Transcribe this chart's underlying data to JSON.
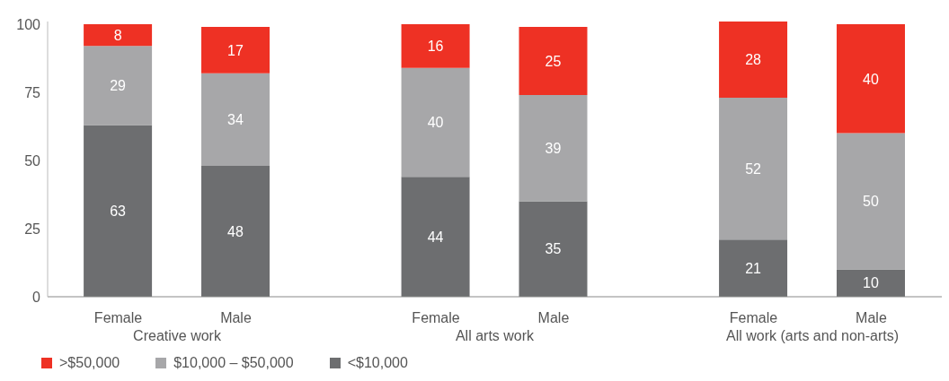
{
  "chart_data": {
    "type": "bar",
    "stacked": true,
    "categories": [
      "Female",
      "Male",
      "Female",
      "Male",
      "Female",
      "Male"
    ],
    "series": [
      {
        "name": "<$10,000",
        "color": "#6d6e70",
        "values": [
          63,
          48,
          44,
          35,
          21,
          10
        ]
      },
      {
        "name": "$10,000 – $50,000",
        "color": "#a7a7a9",
        "values": [
          29,
          34,
          40,
          39,
          52,
          50
        ]
      },
      {
        "name": ">$50,000",
        "color": "#ee3124",
        "values": [
          8,
          17,
          16,
          25,
          28,
          40
        ]
      }
    ],
    "annotations": [
      "Creative work",
      "All arts work",
      "All work (arts and non-arts)"
    ],
    "ylim": [
      0,
      101
    ],
    "yticks": [
      0,
      25,
      50,
      75,
      100
    ],
    "legend": "bottom left",
    "data_labels": true
  }
}
